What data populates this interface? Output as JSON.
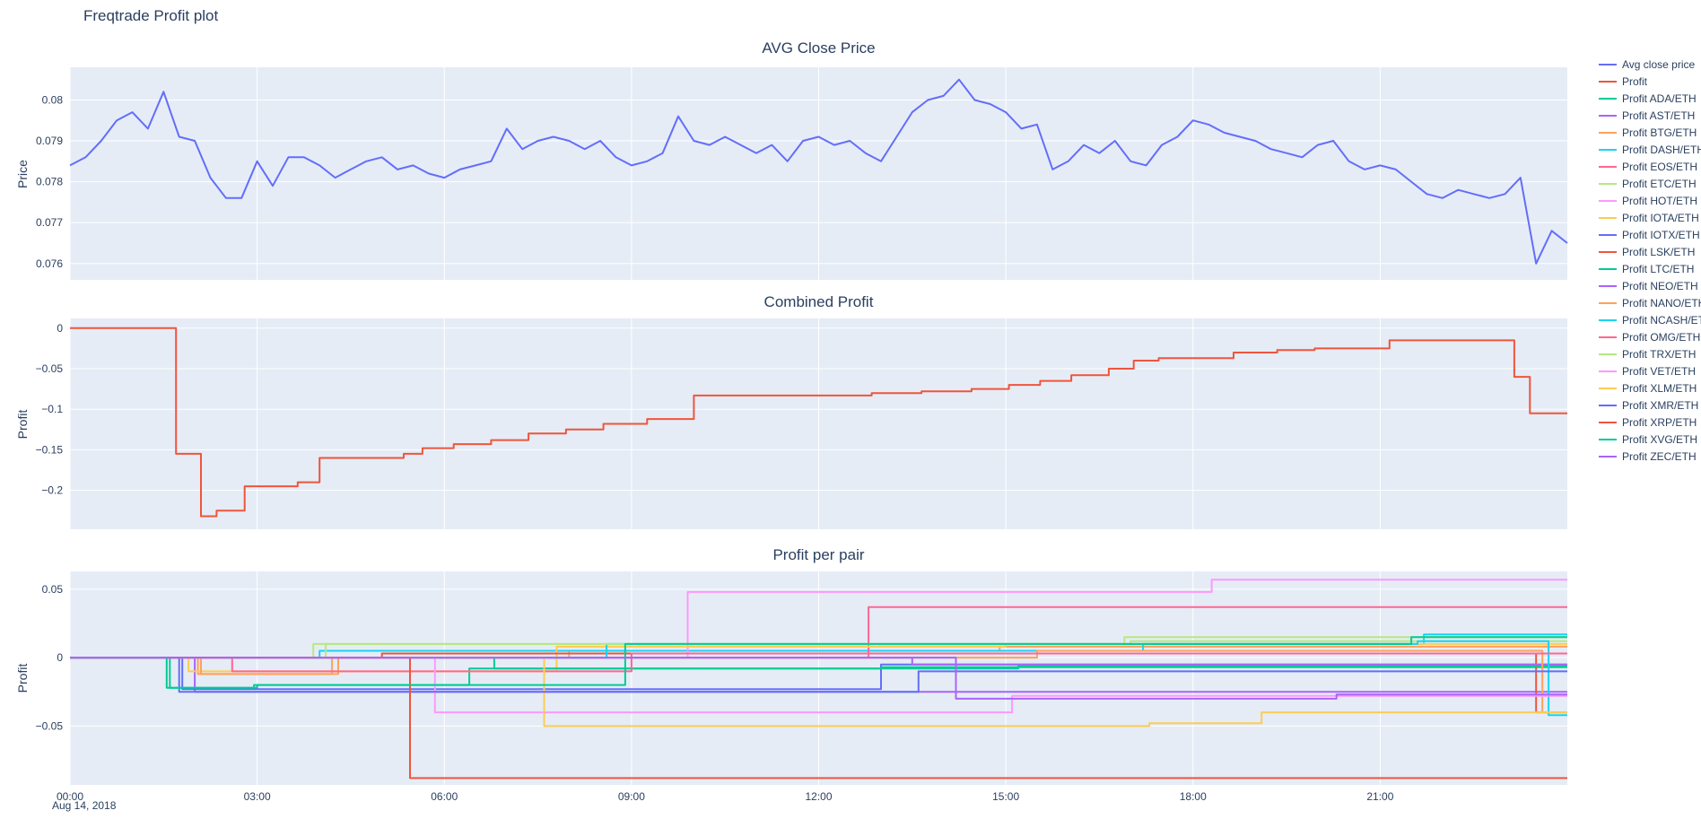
{
  "page": {
    "title": "Freqtrade Profit plot"
  },
  "colors": {
    "plot_bg": "#E5ECF6",
    "grid": "#FFFFFF",
    "font": "#2A3F5F",
    "paper": "#FFFFFF"
  },
  "x_axis": {
    "xlim": [
      0,
      24
    ],
    "date_label": "Aug 14, 2018",
    "ticks": [
      {
        "v": 0,
        "label": "00:00"
      },
      {
        "v": 3,
        "label": "03:00"
      },
      {
        "v": 6,
        "label": "06:00"
      },
      {
        "v": 9,
        "label": "09:00"
      },
      {
        "v": 12,
        "label": "12:00"
      },
      {
        "v": 15,
        "label": "15:00"
      },
      {
        "v": 18,
        "label": "18:00"
      },
      {
        "v": 21,
        "label": "21:00"
      }
    ]
  },
  "chart_data": [
    {
      "type": "line",
      "title": "AVG Close Price",
      "ylabel": "Price",
      "ylim": [
        0.0756,
        0.0808
      ],
      "yticks": [
        {
          "v": 0.08,
          "label": "0.08"
        },
        {
          "v": 0.079,
          "label": "0.079"
        },
        {
          "v": 0.078,
          "label": "0.078"
        },
        {
          "v": 0.077,
          "label": "0.077"
        },
        {
          "v": 0.076,
          "label": "0.076"
        }
      ],
      "series": [
        {
          "name": "Avg close price",
          "color": "#636EFA",
          "step": false,
          "x_start": 0,
          "x_step": 0.25,
          "y": [
            0.0784,
            0.0786,
            0.079,
            0.0795,
            0.0797,
            0.0793,
            0.0802,
            0.0791,
            0.079,
            0.0781,
            0.0776,
            0.0776,
            0.0785,
            0.0779,
            0.0786,
            0.0786,
            0.0784,
            0.0781,
            0.0783,
            0.0785,
            0.0786,
            0.0783,
            0.0784,
            0.0782,
            0.0781,
            0.0783,
            0.0784,
            0.0785,
            0.0793,
            0.0788,
            0.079,
            0.0791,
            0.079,
            0.0788,
            0.079,
            0.0786,
            0.0784,
            0.0785,
            0.0787,
            0.0796,
            0.079,
            0.0789,
            0.0791,
            0.0789,
            0.0787,
            0.0789,
            0.0785,
            0.079,
            0.0791,
            0.0789,
            0.079,
            0.0787,
            0.0785,
            0.0791,
            0.0797,
            0.08,
            0.0801,
            0.0805,
            0.08,
            0.0799,
            0.0797,
            0.0793,
            0.0794,
            0.0783,
            0.0785,
            0.0789,
            0.0787,
            0.079,
            0.0785,
            0.0784,
            0.0789,
            0.0791,
            0.0795,
            0.0794,
            0.0792,
            0.0791,
            0.079,
            0.0788,
            0.0787,
            0.0786,
            0.0789,
            0.079,
            0.0785,
            0.0783,
            0.0784,
            0.0783,
            0.078,
            0.0777,
            0.0776,
            0.0778,
            0.0777,
            0.0776,
            0.0777,
            0.0781,
            0.076,
            0.0768,
            0.0765
          ]
        }
      ]
    },
    {
      "type": "line",
      "title": "Combined Profit",
      "ylabel": "Profit",
      "ylim": [
        -0.248,
        0.012
      ],
      "yticks": [
        {
          "v": 0,
          "label": "0"
        },
        {
          "v": -0.05,
          "label": "−0.05"
        },
        {
          "v": -0.1,
          "label": "−0.1"
        },
        {
          "v": -0.15,
          "label": "−0.15"
        },
        {
          "v": -0.2,
          "label": "−0.2"
        }
      ],
      "series": [
        {
          "name": "Profit",
          "color": "#EF553B",
          "step": true,
          "x": [
            0,
            1.7,
            2.1,
            2.35,
            2.8,
            3.65,
            4.0,
            5.35,
            5.65,
            6.15,
            6.75,
            7.35,
            7.95,
            8.55,
            9.25,
            10.0,
            12.85,
            13.65,
            14.45,
            15.05,
            15.55,
            16.05,
            16.65,
            17.05,
            17.45,
            18.65,
            19.35,
            19.95,
            21.15,
            23.15,
            23.4,
            24.0
          ],
          "y": [
            0,
            -0.155,
            -0.232,
            -0.225,
            -0.195,
            -0.19,
            -0.16,
            -0.155,
            -0.148,
            -0.143,
            -0.138,
            -0.13,
            -0.125,
            -0.118,
            -0.112,
            -0.083,
            -0.08,
            -0.078,
            -0.075,
            -0.07,
            -0.065,
            -0.058,
            -0.05,
            -0.04,
            -0.037,
            -0.03,
            -0.027,
            -0.025,
            -0.015,
            -0.06,
            -0.105,
            -0.105
          ]
        }
      ]
    },
    {
      "type": "line",
      "title": "Profit per pair",
      "ylabel": "Profit",
      "ylim": [
        -0.093,
        0.063
      ],
      "yticks": [
        {
          "v": 0.05,
          "label": "0.05"
        },
        {
          "v": 0,
          "label": "0"
        },
        {
          "v": -0.05,
          "label": "−0.05"
        }
      ],
      "series": [
        {
          "name": "Profit ADA/ETH",
          "color": "#00CC96",
          "step": true,
          "x": [
            0,
            1.6,
            3.0,
            6.4,
            13.0,
            24
          ],
          "y": [
            0,
            -0.022,
            -0.02,
            -0.008,
            -0.007,
            -0.007
          ]
        },
        {
          "name": "Profit AST/ETH",
          "color": "#AB63FA",
          "step": true,
          "x": [
            0,
            2.0,
            24
          ],
          "y": [
            0,
            -0.025,
            -0.025
          ]
        },
        {
          "name": "Profit BTG/ETH",
          "color": "#FFA15A",
          "step": true,
          "x": [
            0,
            2.05,
            4.3,
            8.0,
            14.9,
            24
          ],
          "y": [
            0,
            -0.012,
            0.0,
            0.005,
            0.008,
            0.008
          ]
        },
        {
          "name": "Profit DASH/ETH",
          "color": "#19D3F3",
          "step": true,
          "x": [
            0,
            4.0,
            17.2,
            21.7,
            24
          ],
          "y": [
            0,
            0.005,
            0.01,
            0.017,
            0.017
          ]
        },
        {
          "name": "Profit EOS/ETH",
          "color": "#FF6692",
          "step": true,
          "x": [
            0,
            12.8,
            24
          ],
          "y": [
            0,
            0.037,
            0.037
          ]
        },
        {
          "name": "Profit ETC/ETH",
          "color": "#B6E880",
          "step": true,
          "x": [
            0,
            3.9,
            17.0,
            24
          ],
          "y": [
            0,
            0.01,
            0.012,
            0.012
          ]
        },
        {
          "name": "Profit HOT/ETH",
          "color": "#FF97FF",
          "step": true,
          "x": [
            0,
            9.9,
            18.3,
            24
          ],
          "y": [
            0,
            0.048,
            0.057,
            0.057
          ]
        },
        {
          "name": "Profit IOTA/ETH",
          "color": "#FECB52",
          "step": true,
          "x": [
            0,
            1.9,
            7.8,
            15.0,
            24
          ],
          "y": [
            0,
            -0.01,
            0.008,
            0.01,
            0.01
          ]
        },
        {
          "name": "Profit IOTX/ETH",
          "color": "#636EFA",
          "step": true,
          "x": [
            0,
            1.8,
            13.0,
            24
          ],
          "y": [
            0,
            -0.023,
            -0.005,
            -0.005
          ]
        },
        {
          "name": "Profit LSK/ETH",
          "color": "#EF553B",
          "step": true,
          "x": [
            0,
            5.0,
            23.5,
            24
          ],
          "y": [
            0,
            0.003,
            -0.04,
            -0.04
          ]
        },
        {
          "name": "Profit LTC/ETH",
          "color": "#00CC96",
          "step": true,
          "x": [
            0,
            6.8,
            15.2,
            24
          ],
          "y": [
            0,
            -0.008,
            -0.006,
            -0.006
          ]
        },
        {
          "name": "Profit NEO/ETH",
          "color": "#AB63FA",
          "step": true,
          "x": [
            0,
            13.5,
            24
          ],
          "y": [
            0,
            -0.005,
            -0.005
          ]
        },
        {
          "name": "Profit NANO/ETH",
          "color": "#FFA15A",
          "step": true,
          "x": [
            0,
            2.1,
            4.2,
            15.5,
            23.6,
            24
          ],
          "y": [
            0,
            -0.012,
            0.0,
            0.005,
            -0.04,
            -0.04
          ]
        },
        {
          "name": "Profit NCASH/ETH",
          "color": "#19D3F3",
          "step": true,
          "x": [
            0,
            8.6,
            21.6,
            23.7,
            24
          ],
          "y": [
            0,
            0.01,
            0.012,
            -0.042,
            -0.042
          ]
        },
        {
          "name": "Profit OMG/ETH",
          "color": "#FF6692",
          "step": true,
          "x": [
            0,
            2.6,
            9.0,
            24
          ],
          "y": [
            0,
            -0.01,
            0.003,
            0.003
          ]
        },
        {
          "name": "Profit TRX/ETH",
          "color": "#B6E880",
          "step": true,
          "x": [
            0,
            4.1,
            16.9,
            24
          ],
          "y": [
            0,
            0.01,
            0.015,
            0.015
          ]
        },
        {
          "name": "Profit VET/ETH",
          "color": "#FF97FF",
          "step": true,
          "x": [
            0,
            5.85,
            15.1,
            24
          ],
          "y": [
            0,
            -0.04,
            -0.028,
            -0.028
          ]
        },
        {
          "name": "Profit XLM/ETH",
          "color": "#FECB52",
          "step": true,
          "x": [
            0,
            7.6,
            17.3,
            19.1,
            24
          ],
          "y": [
            0,
            -0.05,
            -0.048,
            -0.04,
            -0.04
          ]
        },
        {
          "name": "Profit XMR/ETH",
          "color": "#636EFA",
          "step": true,
          "x": [
            0,
            1.75,
            13.6,
            24
          ],
          "y": [
            0,
            -0.025,
            -0.01,
            -0.01
          ]
        },
        {
          "name": "Profit XRP/ETH",
          "color": "#EF553B",
          "step": true,
          "x": [
            0,
            5.45,
            24
          ],
          "y": [
            0,
            -0.088,
            -0.088
          ]
        },
        {
          "name": "Profit XVG/ETH",
          "color": "#00CC96",
          "step": true,
          "x": [
            0,
            1.55,
            2.95,
            8.9,
            21.5,
            24
          ],
          "y": [
            0,
            -0.022,
            -0.02,
            0.01,
            0.015,
            0.015
          ]
        },
        {
          "name": "Profit ZEC/ETH",
          "color": "#AB63FA",
          "step": true,
          "x": [
            0,
            14.2,
            20.3,
            24
          ],
          "y": [
            0,
            -0.03,
            -0.027,
            -0.027
          ]
        }
      ]
    }
  ]
}
